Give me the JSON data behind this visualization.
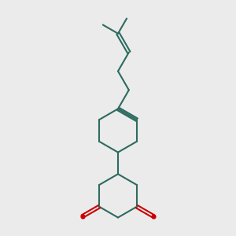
{
  "bond_color": "#2d6b5e",
  "oxygen_color": "#cc0000",
  "background_color": "#ebebeb",
  "line_width": 1.5,
  "fig_size": [
    3.0,
    3.0
  ],
  "dpi": 100
}
